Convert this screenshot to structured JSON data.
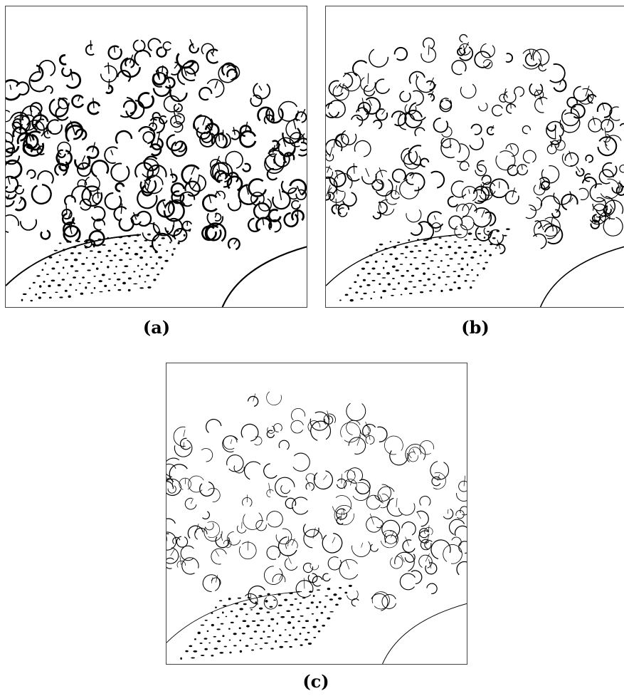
{
  "figure": {
    "panels": [
      {
        "id": "a",
        "caption": "(a)",
        "edge_density": "heavy",
        "description_icon": "edge-detection-image"
      },
      {
        "id": "b",
        "caption": "(b)",
        "edge_density": "medium",
        "description_icon": "edge-detection-image"
      },
      {
        "id": "c",
        "caption": "(c)",
        "edge_density": "light",
        "description_icon": "edge-detection-image"
      }
    ]
  },
  "colors": {
    "ink": "#000000",
    "background": "#ffffff"
  }
}
